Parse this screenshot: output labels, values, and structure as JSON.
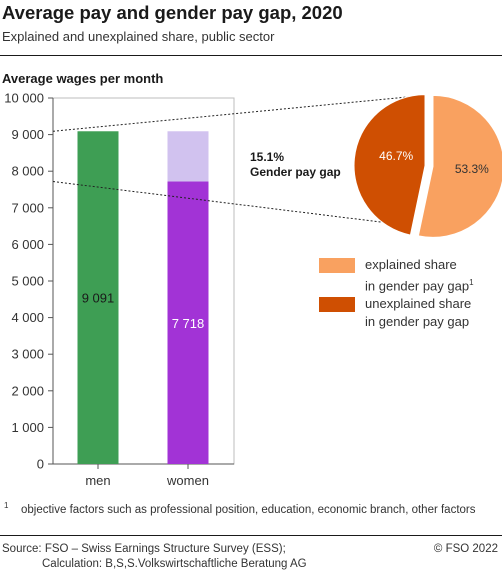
{
  "header": {
    "title": "Average pay and gender pay gap, 2020",
    "subtitle": "Explained and unexplained share, public sector"
  },
  "colors": {
    "men": "#3e9e54",
    "women": "#a233d6",
    "women_gap": "#d1c2ef",
    "explained": "#f9a160",
    "unexplained": "#cf4f02"
  },
  "chart_data": [
    {
      "type": "bar",
      "title": "Average wages per month",
      "categories": [
        "men",
        "women"
      ],
      "values": [
        9091,
        7718
      ],
      "value_labels": [
        "9 091",
        "7 718"
      ],
      "gap": {
        "category": "women",
        "from": 7718,
        "to": 9091
      },
      "ylim": [
        0,
        10000
      ],
      "yticks": [
        0,
        1000,
        2000,
        3000,
        4000,
        5000,
        6000,
        7000,
        8000,
        9000,
        10000
      ],
      "ytick_labels": [
        "0",
        "1 000",
        "2 000",
        "3 000",
        "4 000",
        "5 000",
        "6 000",
        "7 000",
        "8 000",
        "9 000",
        "10 000"
      ],
      "grid": false
    },
    {
      "type": "pie",
      "slices": [
        {
          "name": "unexplained share in gender pay gap",
          "value": 46.7,
          "label": "46.7%"
        },
        {
          "name": "explained share in gender pay gap",
          "value": 53.3,
          "label": "53.3%"
        }
      ],
      "annotation": {
        "line1": "15.1%",
        "line2": "Gender pay gap"
      },
      "legend_position": "below-right"
    }
  ],
  "legend": {
    "explained_line1": "explained share",
    "explained_line2": "in gender pay gap",
    "explained_mark": "1",
    "unexplained_line1": "unexplained share",
    "unexplained_line2": "in gender pay gap"
  },
  "footnote": {
    "mark": "1",
    "text": "objective factors such as professional position, education, economic branch, other factors"
  },
  "footer": {
    "source_line1": "Source: FSO – Swiss Earnings Structure Survey (ESS);",
    "source_line2": "Calculation: B,S,S.Volkswirtschaftliche Beratung AG",
    "copyright": "© FSO 2022"
  }
}
